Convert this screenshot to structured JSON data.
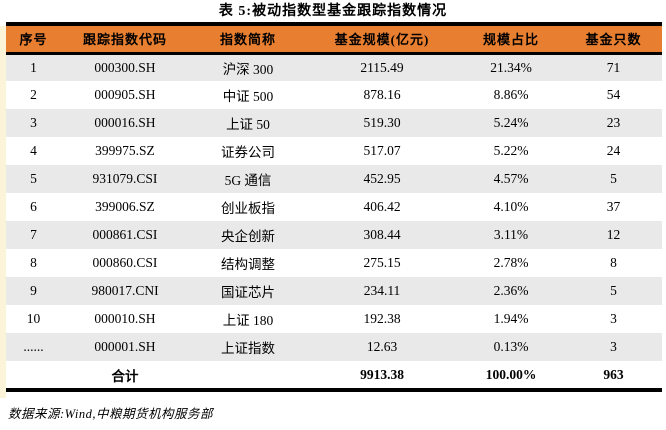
{
  "title": "表 5:被动指数型基金跟踪指数情况",
  "table": {
    "columns": [
      "序号",
      "跟踪指数代码",
      "指数简称",
      "基金规模(亿元)",
      "规模占比",
      "基金只数"
    ],
    "rows": [
      [
        "1",
        "000300.SH",
        "沪深 300",
        "2115.49",
        "21.34%",
        "71"
      ],
      [
        "2",
        "000905.SH",
        "中证 500",
        "878.16",
        "8.86%",
        "54"
      ],
      [
        "3",
        "000016.SH",
        "上证 50",
        "519.30",
        "5.24%",
        "23"
      ],
      [
        "4",
        "399975.SZ",
        "证券公司",
        "517.07",
        "5.22%",
        "24"
      ],
      [
        "5",
        "931079.CSI",
        "5G 通信",
        "452.95",
        "4.57%",
        "5"
      ],
      [
        "6",
        "399006.SZ",
        "创业板指",
        "406.42",
        "4.10%",
        "37"
      ],
      [
        "7",
        "000861.CSI",
        "央企创新",
        "308.44",
        "3.11%",
        "12"
      ],
      [
        "8",
        "000860.CSI",
        "结构调整",
        "275.15",
        "2.78%",
        "8"
      ],
      [
        "9",
        "980017.CNI",
        "国证芯片",
        "234.11",
        "2.36%",
        "5"
      ],
      [
        "10",
        "000010.SH",
        "上证 180",
        "192.38",
        "1.94%",
        "3"
      ],
      [
        "......",
        "000001.SH",
        "上证指数",
        "12.63",
        "0.13%",
        "3"
      ]
    ],
    "total_row": [
      "",
      "合计",
      "",
      "9913.38",
      "100.00%",
      "963"
    ]
  },
  "source_note": "数据来源:Wind,中粮期货机构服务部",
  "colors": {
    "header_bg": "#E87E2F",
    "header_text": "#000000",
    "stripe_row_bg": "#E9E9E9",
    "rule": "#000000",
    "page_margin_strip": "#FBF4D8"
  }
}
